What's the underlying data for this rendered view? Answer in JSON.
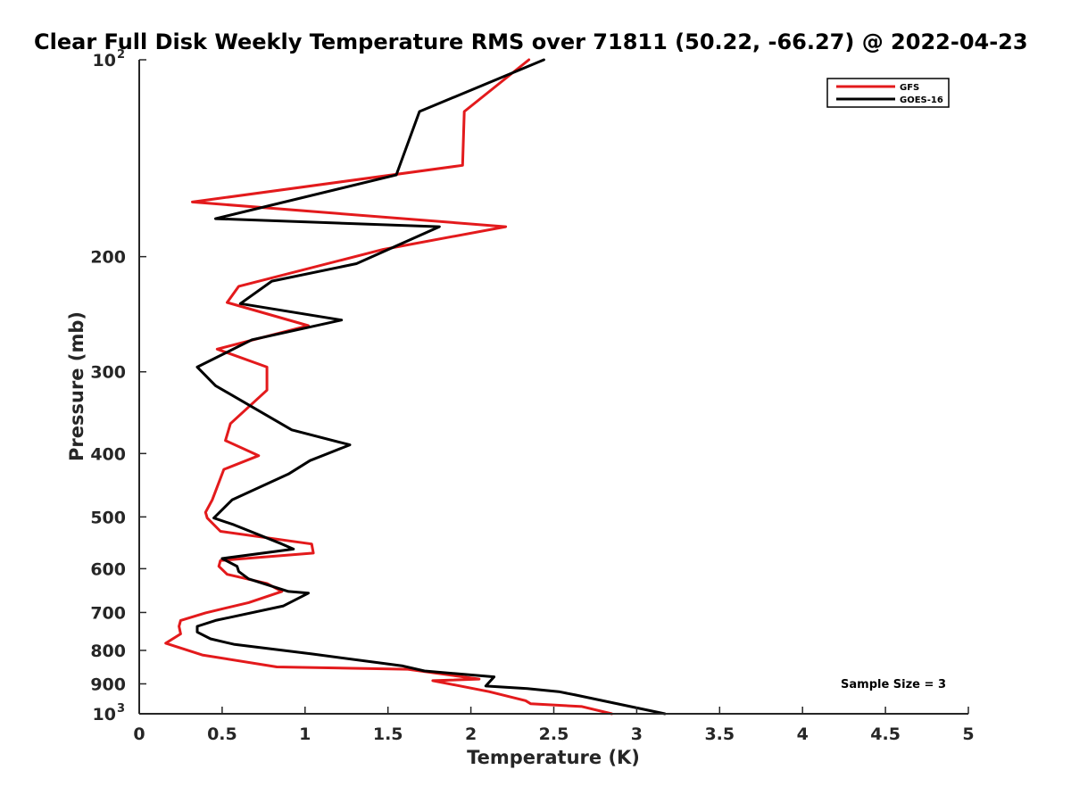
{
  "chart_data": {
    "type": "line",
    "title": "Clear Full Disk Weekly Temperature RMS over 71811 (50.22, -66.27) @ 2022-04-23",
    "xlabel": "Temperature (K)",
    "ylabel": "Pressure (mb)",
    "xlim": [
      0,
      5
    ],
    "ylim": [
      100,
      1000
    ],
    "y_scale": "log",
    "y_reversed": true,
    "grid": false,
    "legend_position": "top-right",
    "x_ticks": [
      0,
      0.5,
      1,
      1.5,
      2,
      2.5,
      3,
      3.5,
      4,
      4.5,
      5
    ],
    "x_tick_labels": [
      "0",
      "0.5",
      "1",
      "1.5",
      "2",
      "2.5",
      "3",
      "3.5",
      "4",
      "4.5",
      "5"
    ],
    "y_ticks": [
      {
        "value": 100,
        "label": "10",
        "exp": "2"
      },
      {
        "value": 200,
        "label": "200"
      },
      {
        "value": 300,
        "label": "300"
      },
      {
        "value": 400,
        "label": "400"
      },
      {
        "value": 500,
        "label": "500"
      },
      {
        "value": 600,
        "label": "600"
      },
      {
        "value": 700,
        "label": "700"
      },
      {
        "value": 800,
        "label": "800"
      },
      {
        "value": 900,
        "label": "900"
      },
      {
        "value": 1000,
        "label": "10",
        "exp": "3"
      }
    ],
    "series": [
      {
        "name": "GFS",
        "color": "#e31a1c",
        "x": [
          2.35,
          1.96,
          1.95,
          0.32,
          2.21,
          1.47,
          0.6,
          0.53,
          1.02,
          0.47,
          0.77,
          0.77,
          0.55,
          0.52,
          0.72,
          0.51,
          0.44,
          0.4,
          0.41,
          0.49,
          1.04,
          1.05,
          0.49,
          0.48,
          0.53,
          0.77,
          0.86,
          0.66,
          0.4,
          0.25,
          0.24,
          0.25,
          0.16,
          0.38,
          0.83,
          1.62,
          2.05,
          1.77,
          2.11,
          2.33,
          2.36,
          2.67,
          2.85
        ],
        "y": [
          100,
          120,
          145,
          165,
          180,
          195,
          222,
          235,
          255,
          277,
          295,
          320,
          360,
          382,
          403,
          423,
          471,
          492,
          502,
          526,
          550,
          568,
          583,
          595,
          612,
          632,
          650,
          676,
          701,
          720,
          735,
          755,
          780,
          813,
          848,
          855,
          885,
          890,
          925,
          955,
          965,
          975,
          1000
        ]
      },
      {
        "name": "GOES-16",
        "color": "#000000",
        "x": [
          2.44,
          1.69,
          1.55,
          0.46,
          1.81,
          1.31,
          0.8,
          0.61,
          1.22,
          0.68,
          0.35,
          0.46,
          0.92,
          1.27,
          1.03,
          0.9,
          0.56,
          0.45,
          0.57,
          0.86,
          0.93,
          0.5,
          0.59,
          0.6,
          0.66,
          0.9,
          1.02,
          0.87,
          0.46,
          0.35,
          0.35,
          0.43,
          0.57,
          1.04,
          1.59,
          1.72,
          2.14,
          2.09,
          2.34,
          2.53,
          2.63,
          3.17
        ],
        "y": [
          100,
          120,
          150,
          175,
          180,
          205,
          218,
          236,
          250,
          268,
          295,
          315,
          368,
          388,
          410,
          430,
          471,
          502,
          514,
          550,
          560,
          579,
          595,
          606,
          622,
          650,
          654,
          684,
          720,
          735,
          750,
          768,
          783,
          810,
          845,
          860,
          878,
          907,
          915,
          925,
          936,
          1000
        ]
      }
    ],
    "annotation": "Sample Size = 3"
  }
}
